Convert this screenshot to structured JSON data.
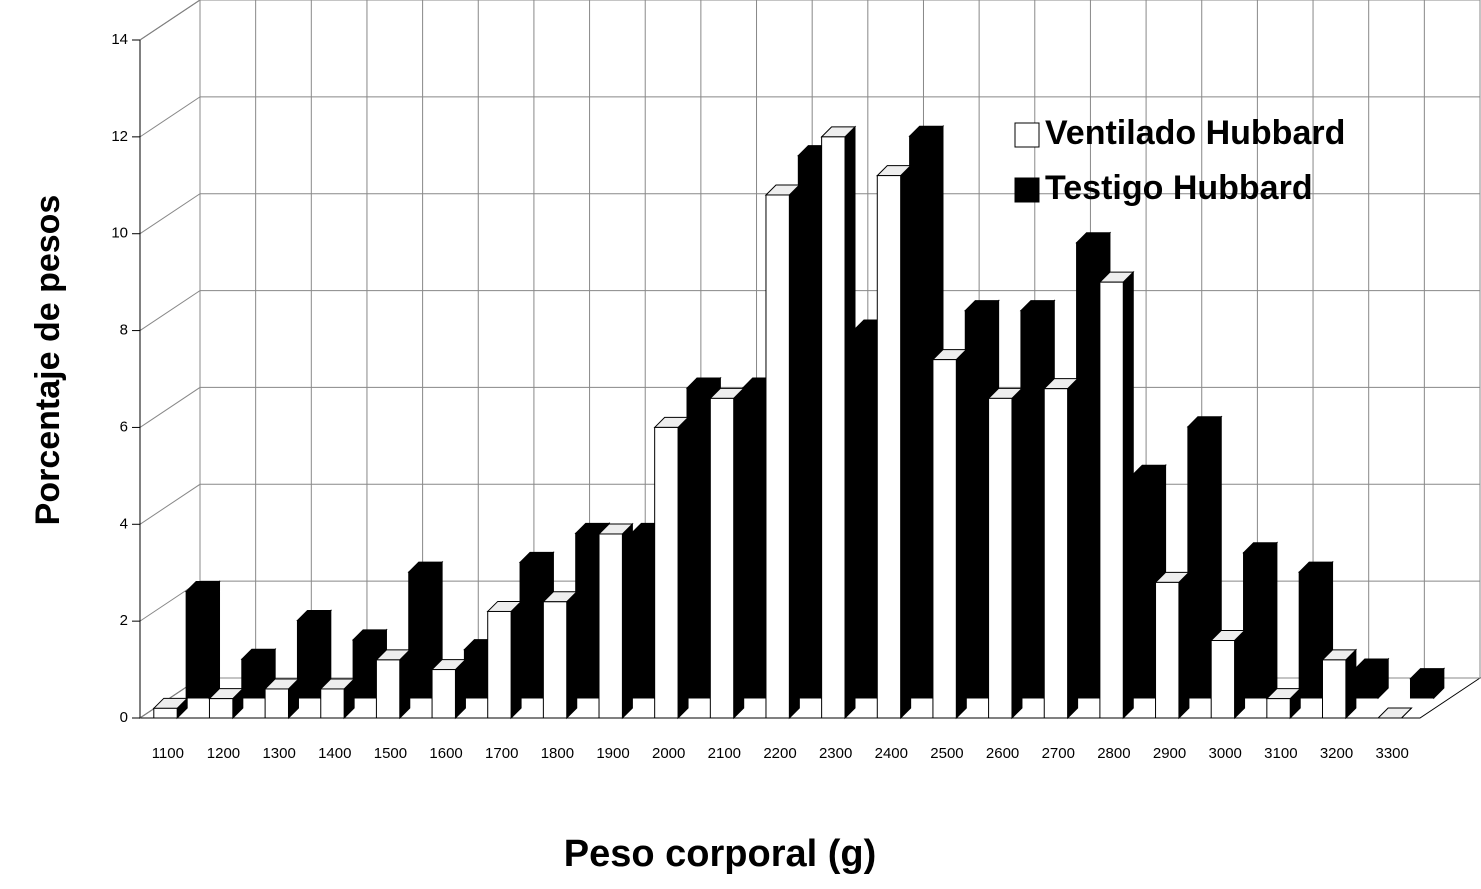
{
  "chart_data": {
    "type": "bar3d",
    "x_label": "Peso corporal (g)",
    "y_label": "Porcentaje de pesos",
    "categories": [
      "1100",
      "1200",
      "1300",
      "1400",
      "1500",
      "1600",
      "1700",
      "1800",
      "1900",
      "2000",
      "2100",
      "2200",
      "2300",
      "2400",
      "2500",
      "2600",
      "2700",
      "2800",
      "2900",
      "3000",
      "3100",
      "3200",
      "3300"
    ],
    "series": [
      {
        "name": "Testigo Hubbard",
        "color": "#000000",
        "values": [
          2.2,
          0.8,
          1.6,
          1.2,
          2.6,
          1.0,
          2.8,
          3.4,
          3.4,
          6.4,
          6.4,
          11.2,
          7.6,
          11.6,
          8.0,
          8.0,
          9.4,
          4.6,
          5.6,
          3.0,
          2.6,
          0.6,
          0.4
        ]
      },
      {
        "name": "Ventilado Hubbard",
        "color": "#ffffff",
        "values": [
          0.2,
          0.4,
          0.6,
          0.6,
          1.2,
          1.0,
          2.2,
          2.4,
          3.8,
          6.0,
          6.6,
          10.8,
          12.0,
          11.2,
          7.4,
          6.6,
          6.8,
          9.0,
          2.8,
          1.6,
          0.4,
          1.2,
          0
        ]
      }
    ],
    "ylim": [
      0,
      14
    ],
    "yticks": [
      0,
      2,
      4,
      6,
      8,
      10,
      12,
      14
    ],
    "grid": true,
    "legend": "top-right"
  }
}
